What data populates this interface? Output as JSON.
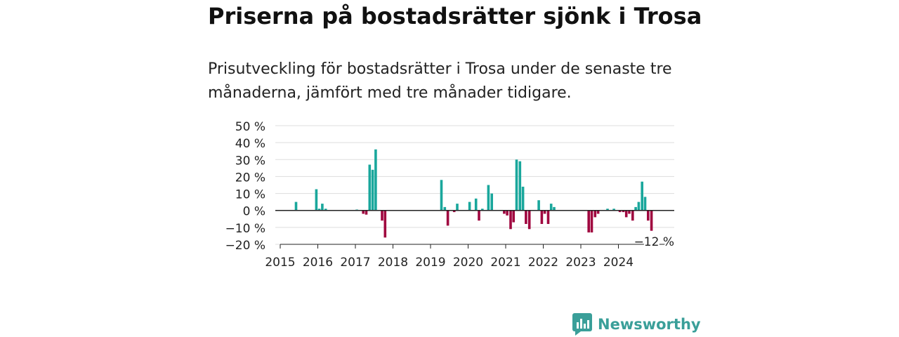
{
  "header": {
    "title": "Priserna på bostadsrätter sjönk i Trosa",
    "subtitle": "Prisutveckling för bostadsrätter i Trosa under de senaste tre månaderna, jämfört med tre månader tidigare."
  },
  "brand": {
    "name": "Newsworthy"
  },
  "colors": {
    "positive": "#1aa79c",
    "negative": "#a0063f",
    "grid": "#dddddd",
    "axis": "#222222",
    "brand": "#3a9f99"
  },
  "chart_data": {
    "type": "bar",
    "title": "",
    "xlabel": "",
    "ylabel": "",
    "ylim": [
      -20,
      50
    ],
    "yticks": [
      50,
      40,
      30,
      20,
      10,
      0,
      -10,
      -20
    ],
    "ytick_labels": [
      "50 %",
      "40 %",
      "30 %",
      "20 %",
      "10 %",
      "0 %",
      "−10 %",
      "−20 %"
    ],
    "xticks": [
      "2015",
      "2016",
      "2017",
      "2018",
      "2019",
      "2020",
      "2021",
      "2022",
      "2023",
      "2024"
    ],
    "x_range": [
      2015.0,
      2025.1
    ],
    "grid": true,
    "annotation": "−12 %",
    "series": [
      {
        "values": [
          {
            "x": 2015.42,
            "y": 5
          },
          {
            "x": 2015.96,
            "y": 12.5
          },
          {
            "x": 2016.04,
            "y": 1
          },
          {
            "x": 2016.12,
            "y": 4
          },
          {
            "x": 2016.21,
            "y": 1
          },
          {
            "x": 2017.04,
            "y": 0.5
          },
          {
            "x": 2017.21,
            "y": -2
          },
          {
            "x": 2017.29,
            "y": -2.5
          },
          {
            "x": 2017.38,
            "y": 27
          },
          {
            "x": 2017.46,
            "y": 24
          },
          {
            "x": 2017.54,
            "y": 36
          },
          {
            "x": 2017.71,
            "y": -6
          },
          {
            "x": 2017.79,
            "y": -16
          },
          {
            "x": 2019.29,
            "y": 18
          },
          {
            "x": 2019.38,
            "y": 2
          },
          {
            "x": 2019.46,
            "y": -9
          },
          {
            "x": 2019.63,
            "y": -1
          },
          {
            "x": 2019.71,
            "y": 4
          },
          {
            "x": 2020.04,
            "y": 5
          },
          {
            "x": 2020.21,
            "y": 7
          },
          {
            "x": 2020.29,
            "y": -6
          },
          {
            "x": 2020.38,
            "y": 1
          },
          {
            "x": 2020.54,
            "y": 15
          },
          {
            "x": 2020.63,
            "y": 10
          },
          {
            "x": 2020.96,
            "y": -2
          },
          {
            "x": 2021.04,
            "y": -3
          },
          {
            "x": 2021.13,
            "y": -11
          },
          {
            "x": 2021.21,
            "y": -7
          },
          {
            "x": 2021.29,
            "y": 30
          },
          {
            "x": 2021.38,
            "y": 29
          },
          {
            "x": 2021.46,
            "y": 14
          },
          {
            "x": 2021.54,
            "y": -8
          },
          {
            "x": 2021.63,
            "y": -11
          },
          {
            "x": 2021.88,
            "y": 6
          },
          {
            "x": 2021.96,
            "y": -8
          },
          {
            "x": 2022.04,
            "y": -2
          },
          {
            "x": 2022.13,
            "y": -8
          },
          {
            "x": 2022.21,
            "y": 4
          },
          {
            "x": 2022.29,
            "y": 2
          },
          {
            "x": 2023.21,
            "y": -13
          },
          {
            "x": 2023.29,
            "y": -13
          },
          {
            "x": 2023.38,
            "y": -4
          },
          {
            "x": 2023.46,
            "y": -2
          },
          {
            "x": 2023.71,
            "y": 1
          },
          {
            "x": 2023.88,
            "y": 1
          },
          {
            "x": 2024.04,
            "y": -1
          },
          {
            "x": 2024.13,
            "y": -1
          },
          {
            "x": 2024.21,
            "y": -4
          },
          {
            "x": 2024.29,
            "y": -2
          },
          {
            "x": 2024.38,
            "y": -6
          },
          {
            "x": 2024.46,
            "y": 2
          },
          {
            "x": 2024.54,
            "y": 5
          },
          {
            "x": 2024.63,
            "y": 17
          },
          {
            "x": 2024.71,
            "y": 8
          },
          {
            "x": 2024.79,
            "y": -6
          },
          {
            "x": 2024.88,
            "y": -12
          }
        ]
      }
    ]
  }
}
